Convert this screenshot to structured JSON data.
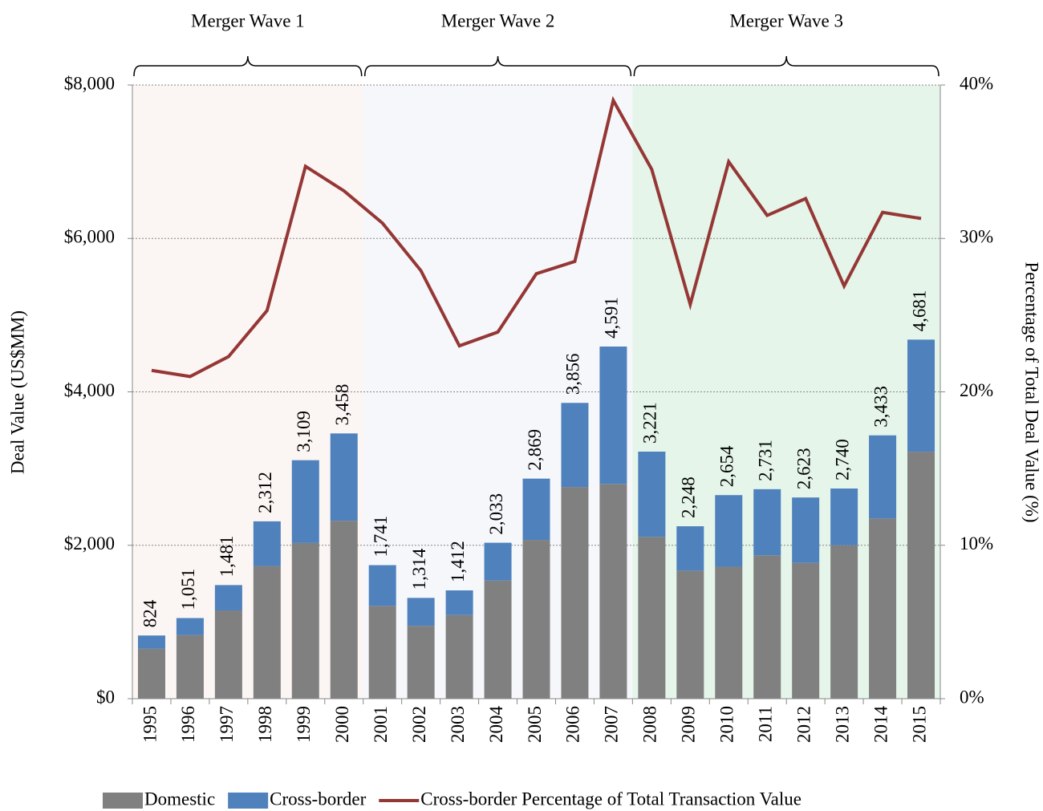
{
  "chart_data": {
    "type": "bar-line",
    "categories": [
      "1995",
      "1996",
      "1997",
      "1998",
      "1999",
      "2000",
      "2001",
      "2002",
      "2003",
      "2004",
      "2005",
      "2006",
      "2007",
      "2008",
      "2009",
      "2010",
      "2011",
      "2012",
      "2013",
      "2014",
      "2015"
    ],
    "series": [
      {
        "name": "Domestic",
        "color": "#808080",
        "values": [
          650,
          830,
          1150,
          1730,
          2030,
          2320,
          1210,
          950,
          1090,
          1540,
          2070,
          2760,
          2800,
          2110,
          1670,
          1720,
          1870,
          1770,
          2000,
          2350,
          3220
        ]
      },
      {
        "name": "Cross-border",
        "color": "#4f81bd",
        "values": [
          174,
          221,
          331,
          582,
          1079,
          1138,
          531,
          364,
          322,
          493,
          799,
          1096,
          1791,
          1111,
          578,
          934,
          861,
          853,
          740,
          1083,
          1461
        ]
      },
      {
        "name": "Cross-border Percentage of Total Transaction Value",
        "color": "#953735",
        "axis": "y2",
        "values": [
          21.4,
          21.0,
          22.3,
          25.3,
          34.7,
          33.1,
          31.0,
          27.9,
          23.0,
          23.9,
          27.7,
          28.5,
          39.0,
          34.5,
          25.7,
          35.0,
          31.5,
          32.6,
          26.9,
          31.7,
          31.3
        ]
      }
    ],
    "totals": [
      824,
      1051,
      1481,
      2312,
      3109,
      3458,
      1741,
      1314,
      1412,
      2033,
      2869,
      3856,
      4591,
      3221,
      2248,
      2654,
      2731,
      2623,
      2740,
      3433,
      4681
    ],
    "total_labels": [
      "824",
      "1,051",
      "1,481",
      "2,312",
      "3,109",
      "3,458",
      "1,741",
      "1,314",
      "1,412",
      "2,033",
      "2,869",
      "3,856",
      "4,591",
      "3,221",
      "2,248",
      "2,654",
      "2,731",
      "2,623",
      "2,740",
      "3,433",
      "4,681"
    ],
    "ylabel": "Deal Value (US$MM)",
    "y2label": "Percentage of Total Deal Value (%)",
    "ylim": [
      0,
      8000
    ],
    "yticks": [
      {
        "value": 0,
        "label": "$0"
      },
      {
        "value": 2000,
        "label": "$2,000"
      },
      {
        "value": 4000,
        "label": "$4,000"
      },
      {
        "value": 6000,
        "label": "$6,000"
      },
      {
        "value": 8000,
        "label": "$8,000"
      }
    ],
    "y2lim": [
      0,
      40
    ],
    "y2ticks": [
      {
        "value": 0,
        "label": "0%"
      },
      {
        "value": 10,
        "label": "10%"
      },
      {
        "value": 20,
        "label": "20%"
      },
      {
        "value": 30,
        "label": "30%"
      },
      {
        "value": 40,
        "label": "40%"
      }
    ],
    "grid": true,
    "legend": "bottom",
    "waves": [
      {
        "label": "Merger Wave 1",
        "from": "1995",
        "to": "2000",
        "color": "#fbf5f3"
      },
      {
        "label": "Merger Wave 2",
        "from": "2001",
        "to": "2007",
        "color": "#f5f7fb"
      },
      {
        "label": "Merger Wave 3",
        "from": "2008",
        "to": "2015",
        "color": "#e5f5ea"
      }
    ]
  }
}
